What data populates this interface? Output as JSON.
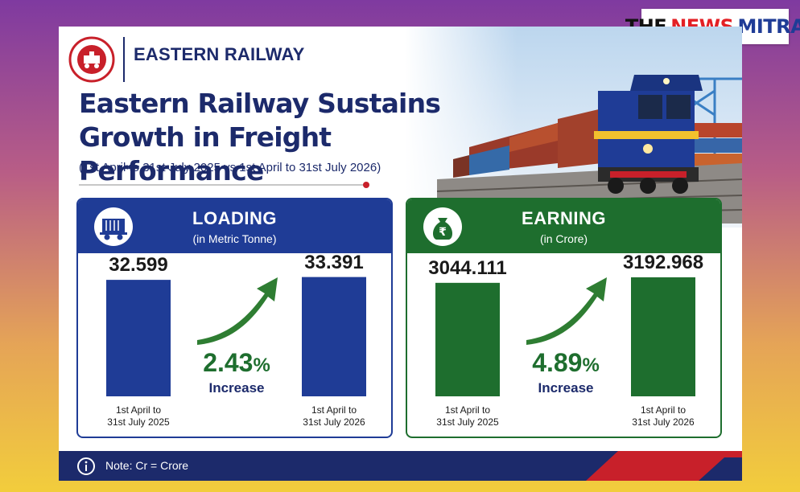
{
  "brand": {
    "part1": "THE",
    "part2": "NEWS",
    "part3": "MITRA"
  },
  "header": {
    "org_name": "EASTERN RAILWAY",
    "title_line1": "Eastern Railway Sustains",
    "title_line2": "Growth in Freight Performance",
    "subtitle": "(1st April to 31st July 2025 vs 1st April to 31st July 2026)"
  },
  "colors": {
    "navy": "#1c2a6b",
    "loading_blue": "#1f3c96",
    "earning_green": "#1e6e2e",
    "accent_red": "#c8202a"
  },
  "icons": {
    "loading": "freight-wagon-icon",
    "earning": "rupee-money-bag-icon",
    "footer": "info-icon",
    "emblem": "indian-railways-emblem"
  },
  "chart_data": [
    {
      "type": "bar",
      "title": "LOADING",
      "subtitle": "(in Metric Tonne)",
      "categories": [
        "1st April to 31st July 2025",
        "1st April to 31st July 2026"
      ],
      "category_lines": [
        [
          "1st April to",
          "31st July 2025"
        ],
        [
          "1st April to",
          "31st July 2026"
        ]
      ],
      "values": [
        32.599,
        33.391
      ],
      "value_labels": [
        "32.599",
        "33.391"
      ],
      "change": {
        "value": "2.43",
        "unit": "%",
        "label": "Increase"
      },
      "ylim": [
        0,
        36
      ],
      "color": "#1f3c96",
      "arrow_color": "#2e7d32"
    },
    {
      "type": "bar",
      "title": "EARNING",
      "subtitle": "(in Crore)",
      "categories": [
        "1st April to 31st July 2025",
        "1st April to 31st July 2026"
      ],
      "category_lines": [
        [
          "1st April to",
          "31st July 2025"
        ],
        [
          "1st April to",
          "31st July 2026"
        ]
      ],
      "values": [
        3044.111,
        3192.968
      ],
      "value_labels": [
        "3044.111",
        "3192.968"
      ],
      "change": {
        "value": "4.89",
        "unit": "%",
        "label": "Increase"
      },
      "ylim": [
        0,
        3450
      ],
      "color": "#1e6e2e",
      "arrow_color": "#2e7d32"
    }
  ],
  "footer": {
    "note": "Note: Cr = Crore"
  }
}
